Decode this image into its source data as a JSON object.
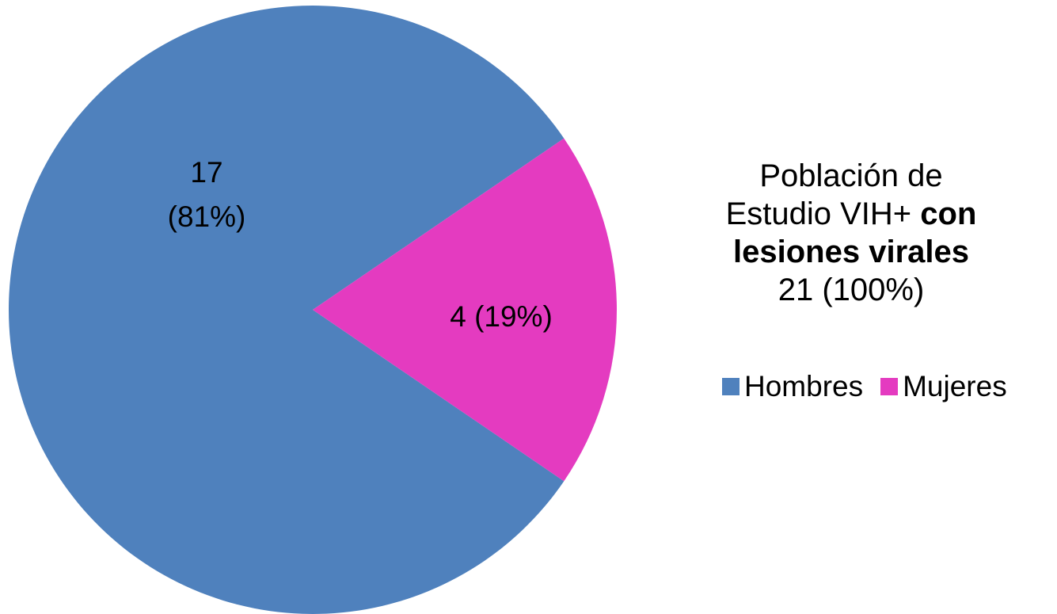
{
  "chart_data": {
    "type": "pie",
    "title": {
      "line1": "Población de",
      "line2_normal": "Estudio VIH+ ",
      "line2_bold": "con",
      "line3_bold": "lesiones virales",
      "line4": "21 (100%)"
    },
    "slices": [
      {
        "name": "Hombres",
        "value": 17,
        "percent": 81,
        "label_line1": "17",
        "label_line2": "(81%)",
        "color": "#4F81BD"
      },
      {
        "name": "Mujeres",
        "value": 4,
        "percent": 19,
        "label_line1": "4 (19%)",
        "label_line2": "",
        "color": "#E43BC0"
      }
    ],
    "total": 21,
    "legend": {
      "placement": "right",
      "entries": [
        "Hombres",
        "Mujeres"
      ]
    }
  }
}
